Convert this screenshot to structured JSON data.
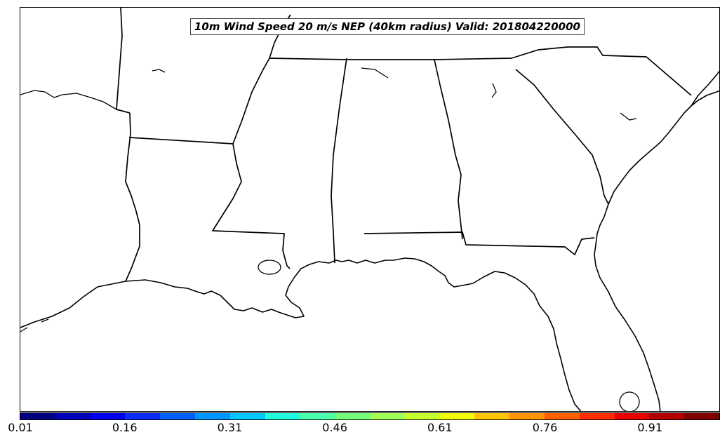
{
  "map": {
    "title": "10m Wind Speed 20 m/s NEP (40km radius) Valid: 201804220000"
  },
  "colorbar": {
    "ticks": [
      "0.01",
      "0.16",
      "0.31",
      "0.46",
      "0.61",
      "0.76",
      "0.91"
    ],
    "colors": [
      "#00007f",
      "#0000b8",
      "#0000f1",
      "#0c2cff",
      "#0060ff",
      "#0094ff",
      "#00c8ff",
      "#1fffe0",
      "#4affac",
      "#74ff7a",
      "#a0ff56",
      "#c8ff30",
      "#f1fc06",
      "#ffc400",
      "#ff9400",
      "#ff6000",
      "#ff2c00",
      "#e80000",
      "#b20000",
      "#7f0000"
    ]
  }
}
